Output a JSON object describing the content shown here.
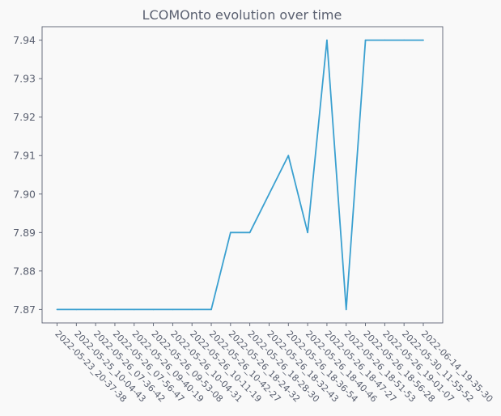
{
  "chart_data": {
    "type": "line",
    "title": "LCOMOnto evolution over time",
    "xlabel": "",
    "ylabel": "",
    "categories": [
      "2022-05-23_20-37-38",
      "2022-05-25_10-04-43",
      "2022-05-26_07-36-42",
      "2022-05-26_07-56-47",
      "2022-05-26_09-40-19",
      "2022-05-26_09-53-08",
      "2022-05-26_10-04-31",
      "2022-05-26_10-11-19",
      "2022-05-26_10-42-27",
      "2022-05-26_18-24-32",
      "2022-05-26_18-28-30",
      "2022-05-26_18-32-43",
      "2022-05-26_18-36-54",
      "2022-05-26_18-40-46",
      "2022-05-26_18-47-27",
      "2022-05-26_18-51-53",
      "2022-05-26_18-56-28",
      "2022-05-26_19-01-07",
      "2022-05-30_11-55-52",
      "2022-06-14_19-35-30"
    ],
    "series": [
      {
        "values": [
          7.87,
          7.87,
          7.87,
          7.87,
          7.87,
          7.87,
          7.87,
          7.87,
          7.87,
          7.89,
          7.89,
          7.9,
          7.91,
          7.89,
          7.94,
          7.87,
          7.94,
          7.94,
          7.94,
          7.94
        ]
      }
    ],
    "ylim": [
      7.8665,
      7.9435
    ],
    "yticks": [
      "7.87",
      "7.88",
      "7.89",
      "7.90",
      "7.91",
      "7.92",
      "7.93",
      "7.94"
    ],
    "grid": false,
    "colors": {
      "line": "#3aa0d0",
      "axis": "#5a6070",
      "background": "#f9f9f9",
      "text": "#5a6070"
    }
  }
}
